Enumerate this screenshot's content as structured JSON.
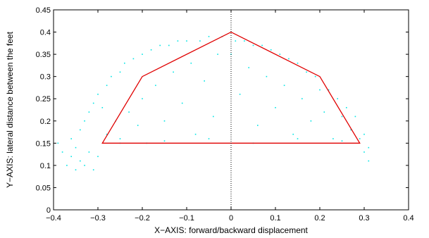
{
  "chart_data": {
    "type": "scatter",
    "title": "",
    "xlabel": "X−AXIS: forward/backward displacement",
    "ylabel": "Y−AXIS: lateral distance between the feet",
    "xlim": [
      -0.4,
      0.4
    ],
    "ylim": [
      0,
      0.45
    ],
    "xticks": [
      -0.4,
      -0.3,
      -0.2,
      -0.1,
      0,
      0.1,
      0.2,
      0.3,
      0.4
    ],
    "yticks": [
      0,
      0.05,
      0.1,
      0.15,
      0.2,
      0.25,
      0.3,
      0.35,
      0.4,
      0.45
    ],
    "xtick_labels": [
      "−0.4",
      "−0.3",
      "−0.2",
      "−0.1",
      "0",
      "0.1",
      "0.2",
      "0.3",
      "0.4"
    ],
    "ytick_labels": [
      "0",
      "0.05",
      "0.1",
      "0.15",
      "0.2",
      "0.25",
      "0.3",
      "0.35",
      "0.4",
      "0.45"
    ],
    "grid": false,
    "series": [
      {
        "kind": "scatter-points",
        "color": "#00e5e5",
        "points": [
          [
            -0.39,
            0.15
          ],
          [
            -0.38,
            0.13
          ],
          [
            -0.37,
            0.1
          ],
          [
            -0.36,
            0.12
          ],
          [
            -0.36,
            0.16
          ],
          [
            -0.35,
            0.09
          ],
          [
            -0.35,
            0.14
          ],
          [
            -0.34,
            0.18
          ],
          [
            -0.34,
            0.11
          ],
          [
            -0.33,
            0.2
          ],
          [
            -0.33,
            0.1
          ],
          [
            -0.32,
            0.22
          ],
          [
            -0.32,
            0.13
          ],
          [
            -0.31,
            0.24
          ],
          [
            -0.31,
            0.09
          ],
          [
            -0.3,
            0.26
          ],
          [
            -0.3,
            0.12
          ],
          [
            -0.29,
            0.23
          ],
          [
            -0.28,
            0.28
          ],
          [
            -0.28,
            0.17
          ],
          [
            -0.27,
            0.3
          ],
          [
            -0.26,
            0.2
          ],
          [
            -0.25,
            0.31
          ],
          [
            -0.25,
            0.16
          ],
          [
            -0.24,
            0.33
          ],
          [
            -0.23,
            0.22
          ],
          [
            -0.22,
            0.34
          ],
          [
            -0.21,
            0.19
          ],
          [
            -0.2,
            0.35
          ],
          [
            -0.2,
            0.25
          ],
          [
            -0.19,
            0.15
          ],
          [
            -0.18,
            0.36
          ],
          [
            -0.17,
            0.28
          ],
          [
            -0.16,
            0.37
          ],
          [
            -0.15,
            0.2
          ],
          [
            -0.14,
            0.37
          ],
          [
            -0.13,
            0.31
          ],
          [
            -0.12,
            0.38
          ],
          [
            -0.11,
            0.24
          ],
          [
            -0.1,
            0.38
          ],
          [
            -0.09,
            0.33
          ],
          [
            -0.08,
            0.17
          ],
          [
            -0.07,
            0.38
          ],
          [
            -0.06,
            0.29
          ],
          [
            -0.05,
            0.39
          ],
          [
            -0.04,
            0.21
          ],
          [
            -0.03,
            0.35
          ],
          [
            -0.02,
            0.39
          ],
          [
            0.0,
            0.35
          ],
          [
            0.01,
            0.38
          ],
          [
            0.02,
            0.26
          ],
          [
            0.03,
            0.38
          ],
          [
            0.04,
            0.32
          ],
          [
            0.05,
            0.37
          ],
          [
            0.06,
            0.19
          ],
          [
            0.07,
            0.37
          ],
          [
            0.08,
            0.3
          ],
          [
            0.09,
            0.36
          ],
          [
            0.1,
            0.23
          ],
          [
            0.11,
            0.35
          ],
          [
            0.12,
            0.28
          ],
          [
            0.13,
            0.34
          ],
          [
            0.14,
            0.17
          ],
          [
            0.15,
            0.33
          ],
          [
            0.16,
            0.25
          ],
          [
            0.17,
            0.31
          ],
          [
            0.18,
            0.2
          ],
          [
            0.19,
            0.3
          ],
          [
            0.2,
            0.27
          ],
          [
            0.21,
            0.22
          ],
          [
            0.22,
            0.27
          ],
          [
            0.23,
            0.16
          ],
          [
            0.24,
            0.25
          ],
          [
            0.25,
            0.21
          ],
          [
            0.26,
            0.23
          ],
          [
            0.27,
            0.18
          ],
          [
            0.28,
            0.21
          ],
          [
            0.29,
            0.16
          ],
          [
            0.3,
            0.17
          ],
          [
            0.3,
            0.13
          ],
          [
            0.31,
            0.14
          ],
          [
            0.31,
            0.11
          ],
          [
            -0.05,
            0.16
          ],
          [
            0.05,
            0.15
          ],
          [
            -0.15,
            0.155
          ],
          [
            0.15,
            0.16
          ],
          [
            -0.25,
            0.15
          ],
          [
            0.25,
            0.155
          ]
        ]
      },
      {
        "kind": "polygon",
        "color": "#e00000",
        "points": [
          [
            -0.29,
            0.15
          ],
          [
            -0.2,
            0.3
          ],
          [
            0,
            0.4
          ],
          [
            0.2,
            0.3
          ],
          [
            0.29,
            0.15
          ]
        ]
      },
      {
        "kind": "dotted-vertical",
        "color": "#000000",
        "x": 0
      }
    ]
  }
}
